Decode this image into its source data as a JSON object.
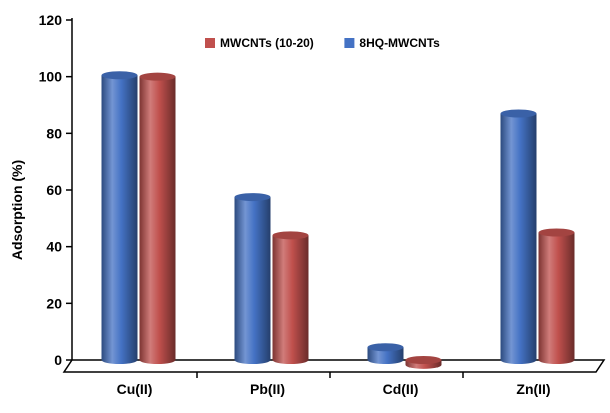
{
  "chart_data": {
    "type": "bar",
    "categories": [
      "Cu(II)",
      "Pb(II)",
      "Cd(II)",
      "Zn(II)"
    ],
    "series": [
      {
        "name": "8HQ-MWCNTs",
        "values": [
          100.5,
          57.5,
          4.5,
          87.0
        ],
        "color": "#4472C4"
      },
      {
        "name": "MWCNTs (10-20)",
        "values": [
          100.0,
          44.0,
          -1.0,
          45.0
        ],
        "color": "#C0504D"
      }
    ],
    "legend_order": [
      "MWCNTs (10-20)",
      "8HQ-MWCNTs"
    ],
    "legend_placement": "top-center",
    "ylabel": "Adsorption  (%)",
    "xlabel": "",
    "title": "",
    "ylim": [
      0,
      120
    ],
    "yticks": [
      0,
      20,
      40,
      60,
      80,
      100,
      120
    ],
    "grid": false,
    "style": "3d-cylinder"
  }
}
